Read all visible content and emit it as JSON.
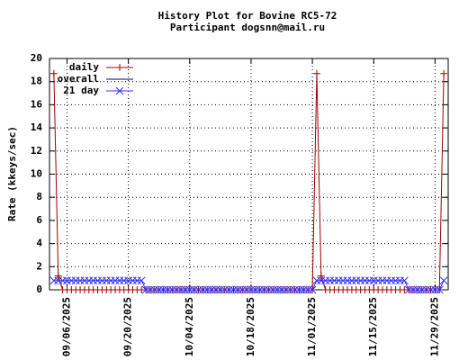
{
  "chart_data": {
    "type": "line",
    "title": "History Plot for Bovine RC5-72",
    "subtitle": "Participant dogsnn@mail.ru",
    "y_label": "Rate (kkeys/sec)",
    "x": [
      "09/03/2025",
      "09/04/2025",
      "09/05/2025",
      "09/06/2025",
      "09/07/2025",
      "09/08/2025",
      "09/09/2025",
      "09/10/2025",
      "09/11/2025",
      "09/12/2025",
      "09/13/2025",
      "09/14/2025",
      "09/15/2025",
      "09/16/2025",
      "09/17/2025",
      "09/18/2025",
      "09/19/2025",
      "09/20/2025",
      "09/21/2025",
      "09/22/2025",
      "09/23/2025",
      "09/24/2025",
      "09/25/2025",
      "09/26/2025",
      "09/27/2025",
      "09/28/2025",
      "09/29/2025",
      "09/30/2025",
      "10/01/2025",
      "10/02/2025",
      "10/03/2025",
      "10/04/2025",
      "10/05/2025",
      "10/06/2025",
      "10/07/2025",
      "10/08/2025",
      "10/09/2025",
      "10/10/2025",
      "10/11/2025",
      "10/12/2025",
      "10/13/2025",
      "10/14/2025",
      "10/15/2025",
      "10/16/2025",
      "10/17/2025",
      "10/18/2025",
      "10/19/2025",
      "10/20/2025",
      "10/21/2025",
      "10/22/2025",
      "10/23/2025",
      "10/24/2025",
      "10/25/2025",
      "10/26/2025",
      "10/27/2025",
      "10/28/2025",
      "10/29/2025",
      "10/30/2025",
      "10/31/2025",
      "11/01/2025",
      "11/02/2025",
      "11/03/2025",
      "11/04/2025",
      "11/05/2025",
      "11/06/2025",
      "11/07/2025",
      "11/08/2025",
      "11/09/2025",
      "11/10/2025",
      "11/11/2025",
      "11/12/2025",
      "11/13/2025",
      "11/14/2025",
      "11/15/2025",
      "11/16/2025",
      "11/17/2025",
      "11/18/2025",
      "11/19/2025",
      "11/20/2025",
      "11/21/2025",
      "11/22/2025",
      "11/23/2025",
      "11/24/2025",
      "11/25/2025",
      "11/26/2025",
      "11/27/2025",
      "11/28/2025",
      "11/29/2025",
      "11/30/2025",
      "12/01/2025"
    ],
    "series": [
      {
        "name": "daily",
        "color": "#a00000",
        "marker": "plus",
        "values": [
          18.7,
          1.2,
          0,
          0,
          0,
          0,
          0,
          0,
          0,
          0,
          0,
          0,
          0,
          0,
          0,
          0,
          0,
          0,
          0,
          0,
          0,
          0,
          0,
          0,
          0,
          0,
          0,
          0,
          0,
          0,
          0,
          0,
          0,
          0,
          0,
          0,
          0,
          0,
          0,
          0,
          0,
          0,
          0,
          0,
          0,
          0,
          0,
          0,
          0,
          0,
          0,
          0,
          0,
          0,
          0,
          0,
          0,
          0,
          0,
          0,
          18.7,
          1.2,
          0,
          0,
          0,
          0,
          0,
          0,
          0,
          0,
          0,
          0,
          0,
          0,
          0,
          0,
          0,
          0,
          0,
          0,
          0,
          0,
          0,
          0,
          0,
          0,
          0,
          0,
          0,
          18.7
        ]
      },
      {
        "name": "overall",
        "color": "#000080",
        "marker": "none",
        "values": [
          null,
          null,
          null,
          null,
          null,
          null,
          null,
          null,
          null,
          null,
          null,
          null,
          null,
          null,
          null,
          null,
          null,
          null,
          null,
          null,
          null,
          null,
          null,
          null,
          null,
          null,
          null,
          null,
          null,
          null,
          null,
          null,
          null,
          null,
          null,
          null,
          null,
          null,
          null,
          null,
          null,
          null,
          null,
          null,
          null,
          null,
          null,
          null,
          null,
          null,
          null,
          null,
          null,
          null,
          null,
          null,
          null,
          null,
          null,
          null,
          null,
          null,
          null,
          null,
          null,
          null,
          null,
          null,
          null,
          null,
          null,
          null,
          null,
          null,
          null,
          null,
          null,
          null,
          null,
          null,
          null,
          null,
          null,
          null,
          null,
          null,
          null,
          null,
          null,
          null
        ]
      },
      {
        "name": "21 day",
        "color": "#3333ff",
        "marker": "cross",
        "values": [
          0.8,
          0.8,
          0.8,
          0.8,
          0.8,
          0.8,
          0.8,
          0.8,
          0.8,
          0.8,
          0.8,
          0.8,
          0.8,
          0.8,
          0.8,
          0.8,
          0.8,
          0.8,
          0.8,
          0.8,
          0.8,
          0,
          0,
          0,
          0,
          0,
          0,
          0,
          0,
          0,
          0,
          0,
          0,
          0,
          0,
          0,
          0,
          0,
          0,
          0,
          0,
          0,
          0,
          0,
          0,
          0,
          0,
          0,
          0,
          0,
          0,
          0,
          0,
          0,
          0,
          0,
          0,
          0,
          0,
          0,
          0.8,
          0.8,
          0.8,
          0.8,
          0.8,
          0.8,
          0.8,
          0.8,
          0.8,
          0.8,
          0.8,
          0.8,
          0.8,
          0.8,
          0.8,
          0.8,
          0.8,
          0.8,
          0.8,
          0.8,
          0.8,
          0,
          0,
          0,
          0,
          0,
          0,
          0,
          0,
          0.8
        ]
      }
    ],
    "xlim": [
      "09/02/2025",
      "12/02/2025"
    ],
    "xticks": [
      "09/06/2025",
      "09/20/2025",
      "10/04/2025",
      "10/18/2025",
      "11/01/2025",
      "11/15/2025",
      "11/29/2025"
    ],
    "ylim": [
      0,
      20
    ],
    "yticks": [
      0,
      2,
      4,
      6,
      8,
      10,
      12,
      14,
      16,
      18,
      20
    ],
    "grid": true,
    "legend": "upper-left"
  }
}
